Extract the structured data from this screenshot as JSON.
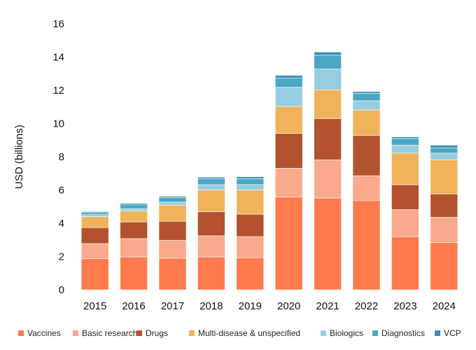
{
  "chart_data": {
    "type": "bar",
    "stacked": true,
    "title": "",
    "xlabel": "",
    "ylabel": "USD (billions)",
    "ylim": [
      0,
      16
    ],
    "yticks": [
      0,
      2,
      4,
      6,
      8,
      10,
      12,
      14,
      16
    ],
    "grid": false,
    "legend_position": "bottom",
    "categories": [
      "2015",
      "2016",
      "2017",
      "2018",
      "2019",
      "2020",
      "2021",
      "2022",
      "2023",
      "2024"
    ],
    "series": [
      {
        "name": "Vaccines",
        "color": "#FF7A4D",
        "values": [
          1.88,
          1.98,
          1.9,
          1.98,
          1.93,
          5.58,
          5.52,
          5.38,
          3.2,
          2.85
        ]
      },
      {
        "name": "Basic research",
        "color": "#F9A98C",
        "values": [
          0.9,
          1.1,
          1.08,
          1.27,
          1.27,
          1.73,
          2.3,
          1.48,
          1.62,
          1.52
        ]
      },
      {
        "name": "Drugs",
        "color": "#B3522F",
        "values": [
          0.96,
          1.0,
          1.14,
          1.45,
          1.35,
          2.1,
          2.48,
          2.43,
          1.5,
          1.4
        ]
      },
      {
        "name": "Multi-disease & unspecified",
        "color": "#F0B35A",
        "values": [
          0.66,
          0.65,
          0.97,
          1.3,
          1.45,
          1.62,
          1.73,
          1.53,
          1.9,
          2.05
        ]
      },
      {
        "name": "Biologics",
        "color": "#97CDE0",
        "values": [
          0.12,
          0.15,
          0.18,
          0.32,
          0.33,
          1.15,
          1.25,
          0.55,
          0.48,
          0.4
        ]
      },
      {
        "name": "Diagnostics",
        "color": "#4BA6C4",
        "values": [
          0.12,
          0.25,
          0.27,
          0.35,
          0.35,
          0.55,
          0.83,
          0.45,
          0.4,
          0.32
        ]
      },
      {
        "name": "VCP",
        "color": "#3B8FB8",
        "values": [
          0.06,
          0.07,
          0.08,
          0.1,
          0.12,
          0.17,
          0.19,
          0.1,
          0.1,
          0.16
        ]
      }
    ]
  }
}
